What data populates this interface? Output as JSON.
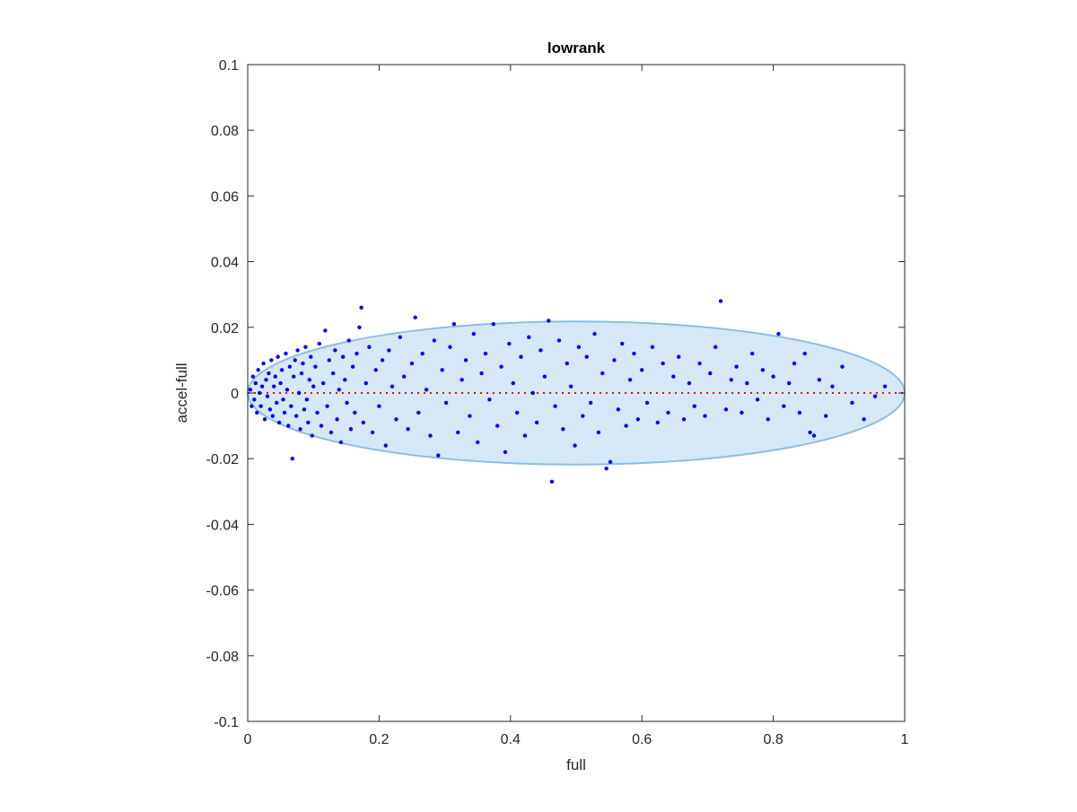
{
  "chart_data": {
    "type": "scatter",
    "title": "lowrank",
    "xlabel": "full",
    "ylabel": "accel-full",
    "xlim": [
      0,
      1
    ],
    "ylim": [
      -0.1,
      0.1
    ],
    "xticks": [
      0,
      0.2,
      0.4,
      0.6,
      0.8,
      1
    ],
    "xtick_labels": [
      "0",
      "0.2",
      "0.4",
      "0.6",
      "0.8",
      "1"
    ],
    "yticks": [
      0.1,
      0.08,
      0.06,
      0.04,
      0.02,
      0,
      -0.02,
      -0.04,
      -0.06,
      -0.08,
      -0.1
    ],
    "ytick_labels": [
      "0.1",
      "0.08",
      "0.06",
      "0.04",
      "0.02",
      "0",
      "-0.02",
      "-0.04",
      "-0.06",
      "-0.08",
      "-0.1"
    ],
    "grid": false,
    "reference_line": {
      "y": 0,
      "style": "dotted",
      "color": "#ff0000"
    },
    "ellipse": {
      "center_x": 0.5,
      "center_y": 0,
      "radius_x": 0.5,
      "radius_y": 0.0218,
      "fill": "#d6e8f5",
      "stroke": "#8cbde0"
    },
    "series": [
      {
        "color": "#0000ff",
        "points": [
          [
            0.004,
            0.001
          ],
          [
            0.006,
            -0.004
          ],
          [
            0.008,
            0.005
          ],
          [
            0.01,
            -0.002
          ],
          [
            0.012,
            0.003
          ],
          [
            0.014,
            -0.006
          ],
          [
            0.016,
            0.007
          ],
          [
            0.018,
            0.0
          ],
          [
            0.02,
            -0.004
          ],
          [
            0.022,
            0.002
          ],
          [
            0.024,
            0.009
          ],
          [
            0.026,
            -0.008
          ],
          [
            0.028,
            0.004
          ],
          [
            0.03,
            -0.001
          ],
          [
            0.032,
            0.006
          ],
          [
            0.034,
            -0.005
          ],
          [
            0.036,
            0.01
          ],
          [
            0.038,
            -0.007
          ],
          [
            0.04,
            0.002
          ],
          [
            0.042,
            0.005
          ],
          [
            0.044,
            -0.003
          ],
          [
            0.046,
            0.011
          ],
          [
            0.048,
            -0.009
          ],
          [
            0.05,
            0.003
          ],
          [
            0.052,
            0.007
          ],
          [
            0.054,
            -0.002
          ],
          [
            0.056,
            -0.006
          ],
          [
            0.058,
            0.012
          ],
          [
            0.06,
            0.001
          ],
          [
            0.062,
            -0.01
          ],
          [
            0.064,
            0.008
          ],
          [
            0.066,
            -0.004
          ],
          [
            0.068,
            -0.02
          ],
          [
            0.07,
            0.005
          ],
          [
            0.072,
            0.01
          ],
          [
            0.074,
            -0.007
          ],
          [
            0.076,
            0.013
          ],
          [
            0.078,
            0.0
          ],
          [
            0.08,
            -0.011
          ],
          [
            0.082,
            0.006
          ],
          [
            0.084,
            0.009
          ],
          [
            0.086,
            -0.005
          ],
          [
            0.088,
            0.014
          ],
          [
            0.09,
            -0.002
          ],
          [
            0.092,
            -0.009
          ],
          [
            0.094,
            0.004
          ],
          [
            0.096,
            0.011
          ],
          [
            0.098,
            -0.013
          ],
          [
            0.1,
            0.002
          ],
          [
            0.103,
            0.008
          ],
          [
            0.106,
            -0.006
          ],
          [
            0.109,
            0.015
          ],
          [
            0.112,
            -0.01
          ],
          [
            0.115,
            0.003
          ],
          [
            0.118,
            0.019
          ],
          [
            0.121,
            -0.004
          ],
          [
            0.124,
            0.01
          ],
          [
            0.127,
            -0.012
          ],
          [
            0.13,
            0.006
          ],
          [
            0.133,
            0.013
          ],
          [
            0.136,
            -0.008
          ],
          [
            0.139,
            0.001
          ],
          [
            0.142,
            -0.015
          ],
          [
            0.145,
            0.011
          ],
          [
            0.148,
            0.004
          ],
          [
            0.151,
            -0.003
          ],
          [
            0.154,
            0.016
          ],
          [
            0.157,
            -0.011
          ],
          [
            0.16,
            0.008
          ],
          [
            0.163,
            -0.006
          ],
          [
            0.166,
            0.012
          ],
          [
            0.17,
            0.02
          ],
          [
            0.173,
            0.026
          ],
          [
            0.176,
            -0.009
          ],
          [
            0.18,
            0.003
          ],
          [
            0.185,
            0.014
          ],
          [
            0.19,
            -0.012
          ],
          [
            0.195,
            0.007
          ],
          [
            0.2,
            -0.004
          ],
          [
            0.205,
            0.01
          ],
          [
            0.21,
            -0.016
          ],
          [
            0.215,
            0.013
          ],
          [
            0.22,
            0.002
          ],
          [
            0.226,
            -0.008
          ],
          [
            0.232,
            0.017
          ],
          [
            0.238,
            0.005
          ],
          [
            0.244,
            -0.011
          ],
          [
            0.25,
            0.009
          ],
          [
            0.255,
            0.023
          ],
          [
            0.26,
            -0.006
          ],
          [
            0.266,
            0.012
          ],
          [
            0.272,
            0.001
          ],
          [
            0.278,
            -0.013
          ],
          [
            0.284,
            0.016
          ],
          [
            0.29,
            -0.019
          ],
          [
            0.296,
            0.007
          ],
          [
            0.302,
            -0.003
          ],
          [
            0.308,
            0.014
          ],
          [
            0.314,
            0.021
          ],
          [
            0.32,
            -0.012
          ],
          [
            0.326,
            0.004
          ],
          [
            0.332,
            0.01
          ],
          [
            0.338,
            -0.007
          ],
          [
            0.344,
            0.018
          ],
          [
            0.35,
            -0.015
          ],
          [
            0.356,
            0.006
          ],
          [
            0.362,
            0.012
          ],
          [
            0.368,
            -0.002
          ],
          [
            0.374,
            0.021
          ],
          [
            0.38,
            -0.01
          ],
          [
            0.386,
            0.008
          ],
          [
            0.392,
            -0.018
          ],
          [
            0.398,
            0.015
          ],
          [
            0.404,
            0.003
          ],
          [
            0.41,
            -0.006
          ],
          [
            0.416,
            0.011
          ],
          [
            0.422,
            -0.013
          ],
          [
            0.428,
            0.017
          ],
          [
            0.434,
            0.0
          ],
          [
            0.44,
            -0.009
          ],
          [
            0.446,
            0.013
          ],
          [
            0.452,
            0.005
          ],
          [
            0.458,
            0.022
          ],
          [
            0.463,
            -0.027
          ],
          [
            0.468,
            -0.004
          ],
          [
            0.474,
            0.016
          ],
          [
            0.48,
            -0.011
          ],
          [
            0.486,
            0.009
          ],
          [
            0.492,
            0.002
          ],
          [
            0.498,
            -0.016
          ],
          [
            0.504,
            0.014
          ],
          [
            0.51,
            -0.007
          ],
          [
            0.516,
            0.011
          ],
          [
            0.522,
            -0.003
          ],
          [
            0.528,
            0.018
          ],
          [
            0.534,
            -0.012
          ],
          [
            0.54,
            0.006
          ],
          [
            0.546,
            -0.023
          ],
          [
            0.552,
            -0.021
          ],
          [
            0.558,
            0.01
          ],
          [
            0.564,
            -0.005
          ],
          [
            0.57,
            0.015
          ],
          [
            0.576,
            -0.01
          ],
          [
            0.582,
            0.004
          ],
          [
            0.588,
            0.012
          ],
          [
            0.594,
            -0.008
          ],
          [
            0.6,
            0.007
          ],
          [
            0.608,
            -0.003
          ],
          [
            0.616,
            0.014
          ],
          [
            0.624,
            -0.009
          ],
          [
            0.632,
            0.009
          ],
          [
            0.64,
            -0.006
          ],
          [
            0.648,
            0.005
          ],
          [
            0.656,
            0.011
          ],
          [
            0.664,
            -0.008
          ],
          [
            0.672,
            0.003
          ],
          [
            0.68,
            -0.004
          ],
          [
            0.688,
            0.009
          ],
          [
            0.696,
            -0.007
          ],
          [
            0.704,
            0.006
          ],
          [
            0.712,
            0.014
          ],
          [
            0.72,
            0.028
          ],
          [
            0.728,
            -0.005
          ],
          [
            0.736,
            0.004
          ],
          [
            0.744,
            0.008
          ],
          [
            0.752,
            -0.006
          ],
          [
            0.76,
            0.003
          ],
          [
            0.768,
            0.012
          ],
          [
            0.776,
            -0.002
          ],
          [
            0.784,
            0.007
          ],
          [
            0.792,
            -0.008
          ],
          [
            0.8,
            0.005
          ],
          [
            0.808,
            0.018
          ],
          [
            0.816,
            -0.004
          ],
          [
            0.824,
            0.003
          ],
          [
            0.832,
            0.009
          ],
          [
            0.84,
            -0.006
          ],
          [
            0.848,
            0.012
          ],
          [
            0.856,
            -0.012
          ],
          [
            0.862,
            -0.013
          ],
          [
            0.87,
            0.004
          ],
          [
            0.88,
            -0.007
          ],
          [
            0.89,
            0.002
          ],
          [
            0.905,
            0.008
          ],
          [
            0.92,
            -0.003
          ],
          [
            0.938,
            -0.008
          ],
          [
            0.955,
            -0.001
          ],
          [
            0.97,
            0.002
          ]
        ]
      }
    ]
  }
}
